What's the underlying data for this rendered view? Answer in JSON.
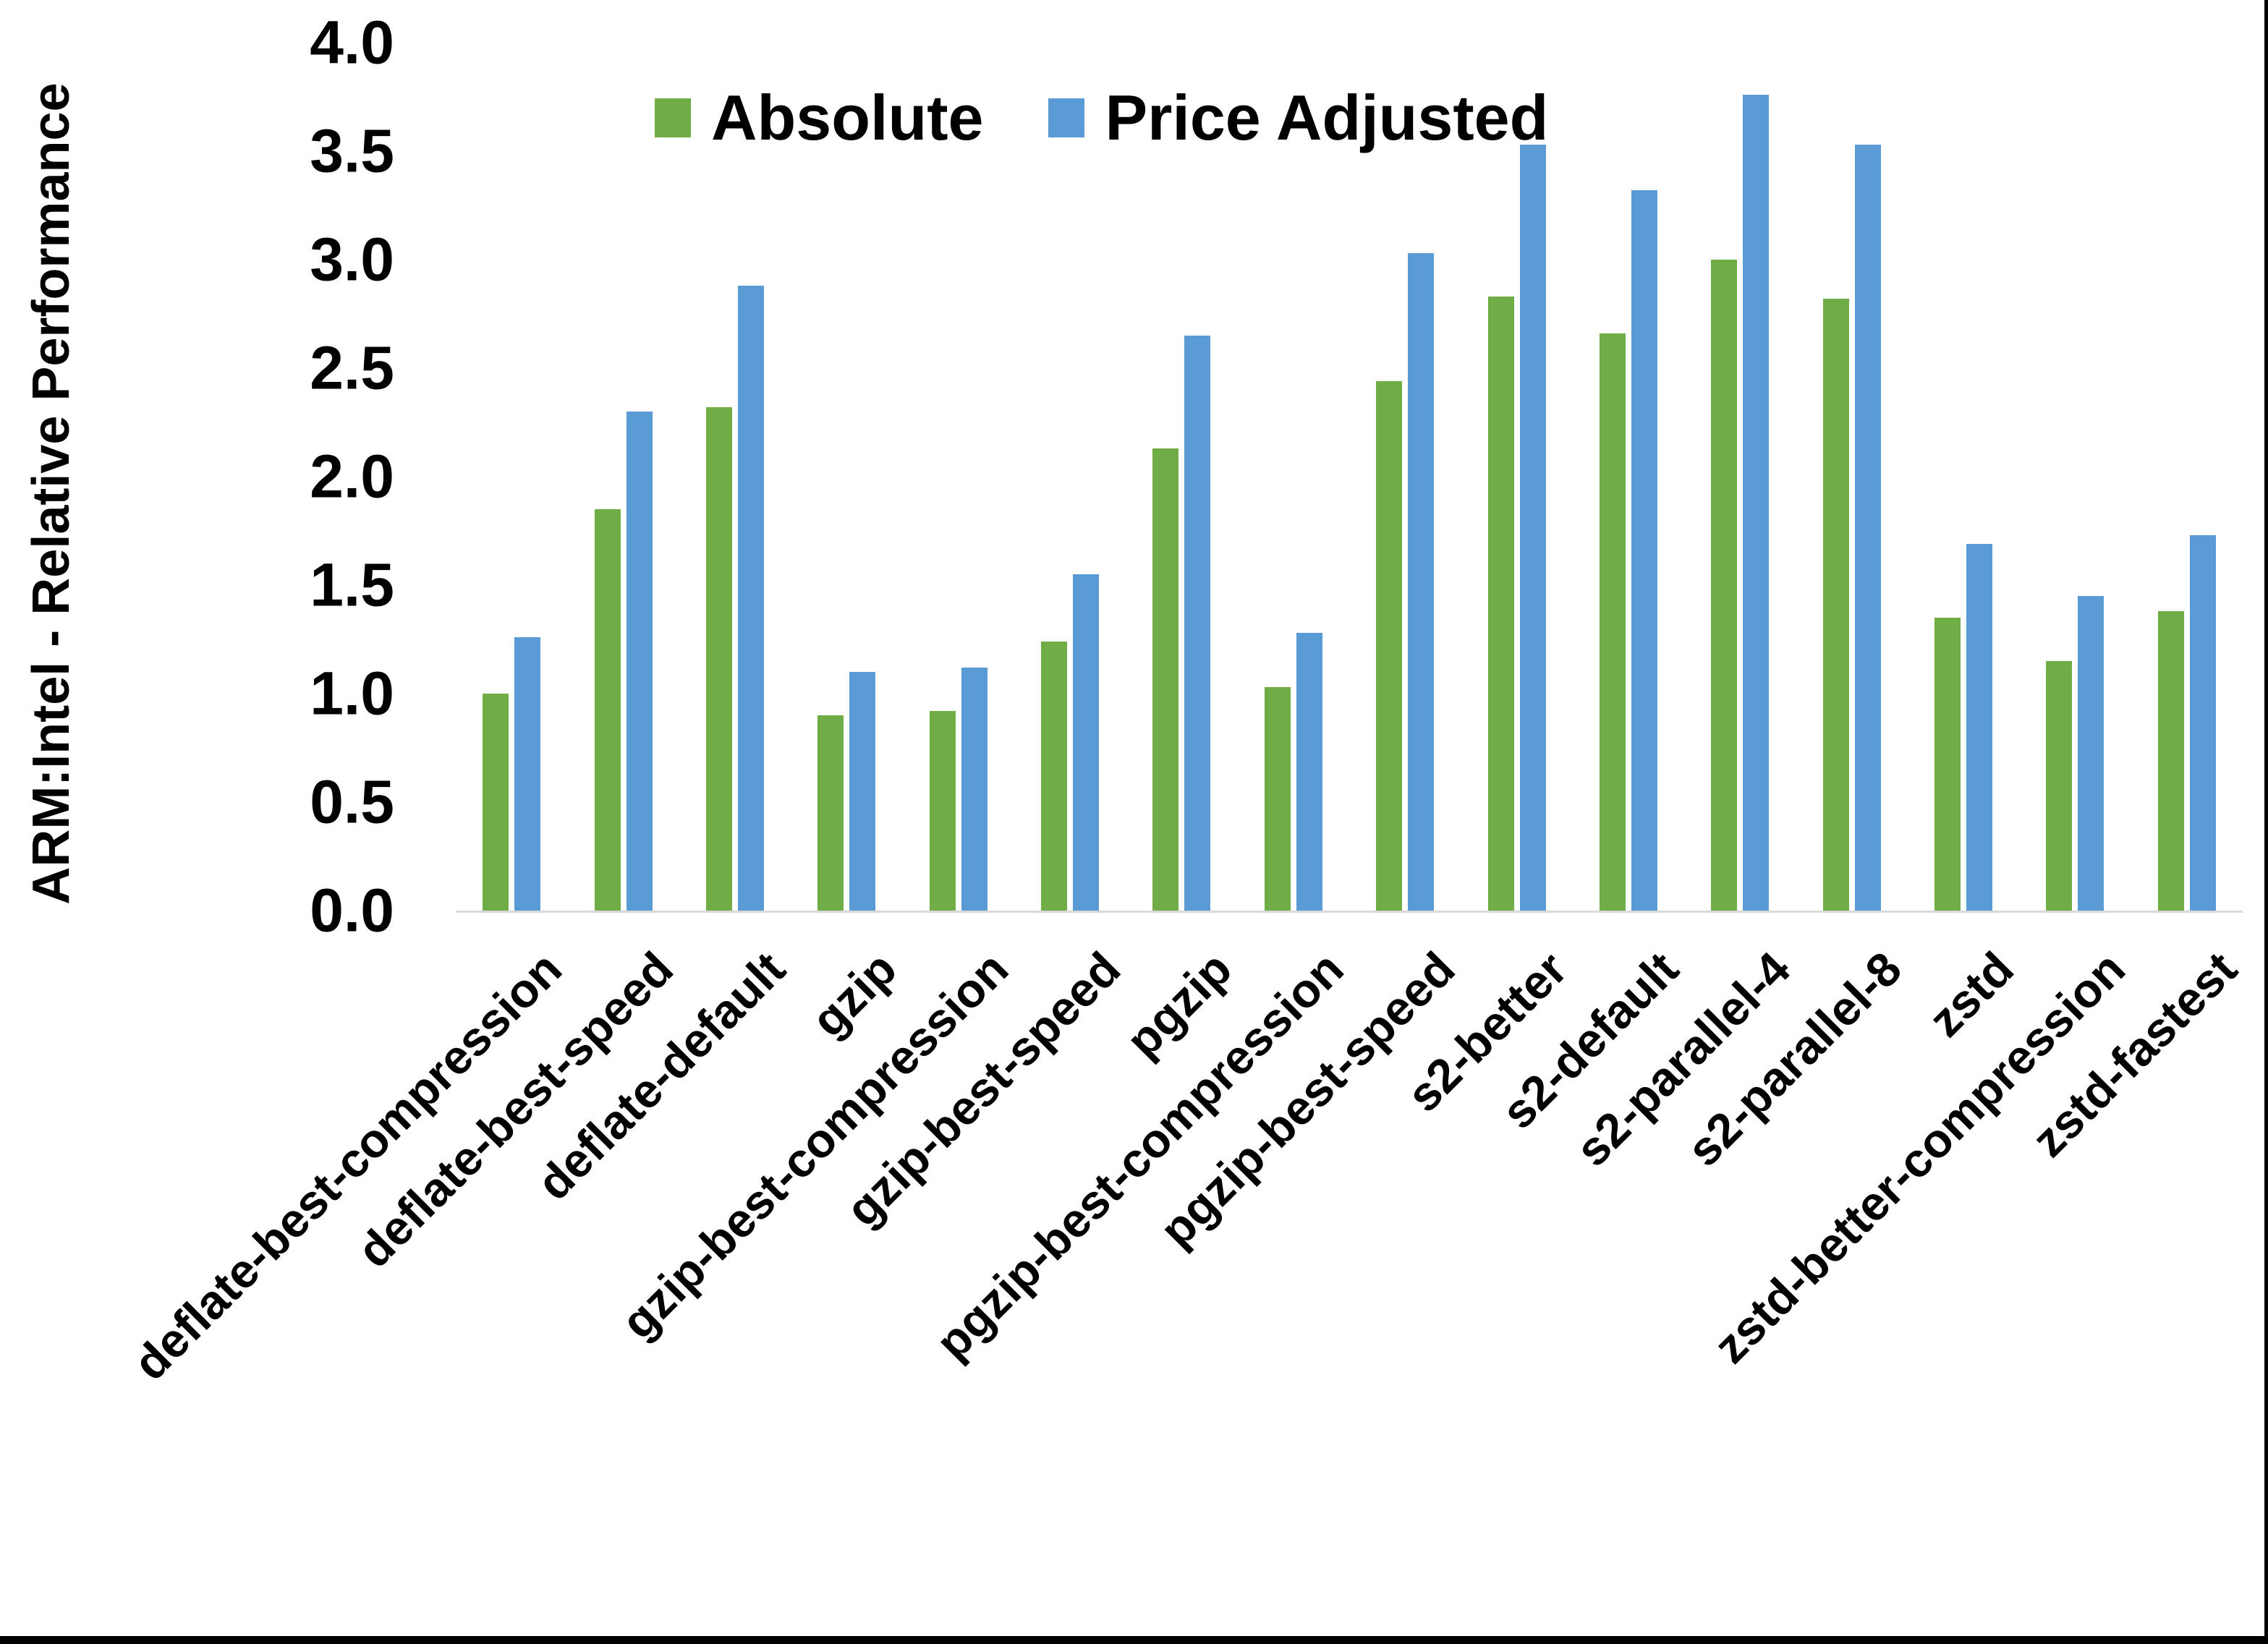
{
  "legend": {
    "items": [
      {
        "label": "Absolute",
        "color": "#70AD47"
      },
      {
        "label": "Price Adjusted",
        "color": "#5B9BD5"
      }
    ]
  },
  "chart_data": {
    "type": "bar",
    "title": "",
    "xlabel": "",
    "ylabel": "ARM:Intel - Relative Performance",
    "ylim": [
      0.0,
      4.0
    ],
    "ytick_step": 0.5,
    "yticks": [
      "0.0",
      "0.5",
      "1.0",
      "1.5",
      "2.0",
      "2.5",
      "3.0",
      "3.5",
      "4.0"
    ],
    "grid": false,
    "legend_position": "top-center",
    "axis_line_color": "#d9d9d9",
    "categories": [
      "deflate-best-compression",
      "deflate-best-speed",
      "deflate-default",
      "gzip",
      "gzip-best-compression",
      "gzip-best-speed",
      "pgzip",
      "pgzip-best-compression",
      "pgzip-best-speed",
      "s2-better",
      "s2-default",
      "s2-parallel-4",
      "s2-parallel-8",
      "zstd",
      "zstd-better-compression",
      "zstd-fastest"
    ],
    "series": [
      {
        "name": "Absolute",
        "color": "#70AD47",
        "values": [
          1.0,
          1.85,
          2.32,
          0.9,
          0.92,
          1.24,
          2.13,
          1.03,
          2.44,
          2.83,
          2.66,
          3.0,
          2.82,
          1.35,
          1.15,
          1.38
        ]
      },
      {
        "name": "Price Adjusted",
        "color": "#5B9BD5",
        "values": [
          1.26,
          2.3,
          2.88,
          1.1,
          1.12,
          1.55,
          2.65,
          1.28,
          3.03,
          3.53,
          3.32,
          3.76,
          3.53,
          1.69,
          1.45,
          1.73
        ]
      }
    ]
  }
}
